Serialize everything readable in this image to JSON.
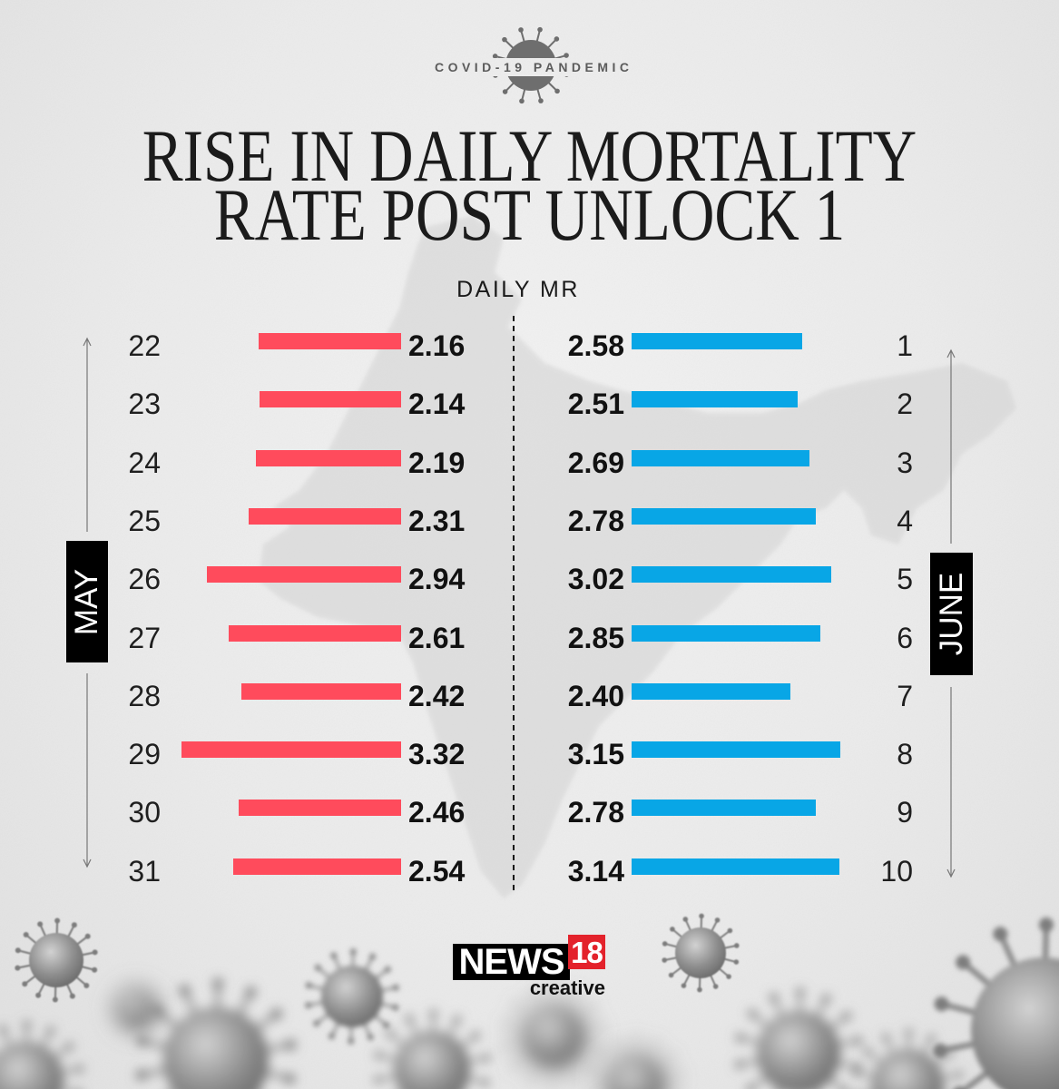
{
  "badge": {
    "label": "COVID-19 PANDEMIC",
    "icon": "virus-icon"
  },
  "chart_data": {
    "type": "bar",
    "orientation": "horizontal",
    "title": [
      "RISE IN DAILY MORTALITY",
      "RATE POST UNLOCK 1"
    ],
    "value_label": "DAILY MR",
    "grid": false,
    "series": [
      {
        "name": "MAY",
        "color": "#ff4b5c",
        "categories": [
          "22",
          "23",
          "24",
          "25",
          "26",
          "27",
          "28",
          "29",
          "30",
          "31"
        ],
        "values": [
          2.16,
          2.14,
          2.19,
          2.31,
          2.94,
          2.61,
          2.42,
          3.32,
          2.46,
          2.54
        ]
      },
      {
        "name": "JUNE",
        "color": "#08a6e6",
        "categories": [
          "1",
          "2",
          "3",
          "4",
          "5",
          "6",
          "7",
          "8",
          "9",
          "10"
        ],
        "values": [
          2.58,
          2.51,
          2.69,
          2.78,
          3.02,
          2.85,
          2.4,
          3.15,
          2.78,
          3.14
        ]
      }
    ]
  },
  "logo": {
    "brand": "NEWS",
    "number": "18",
    "tagline": "creative"
  }
}
